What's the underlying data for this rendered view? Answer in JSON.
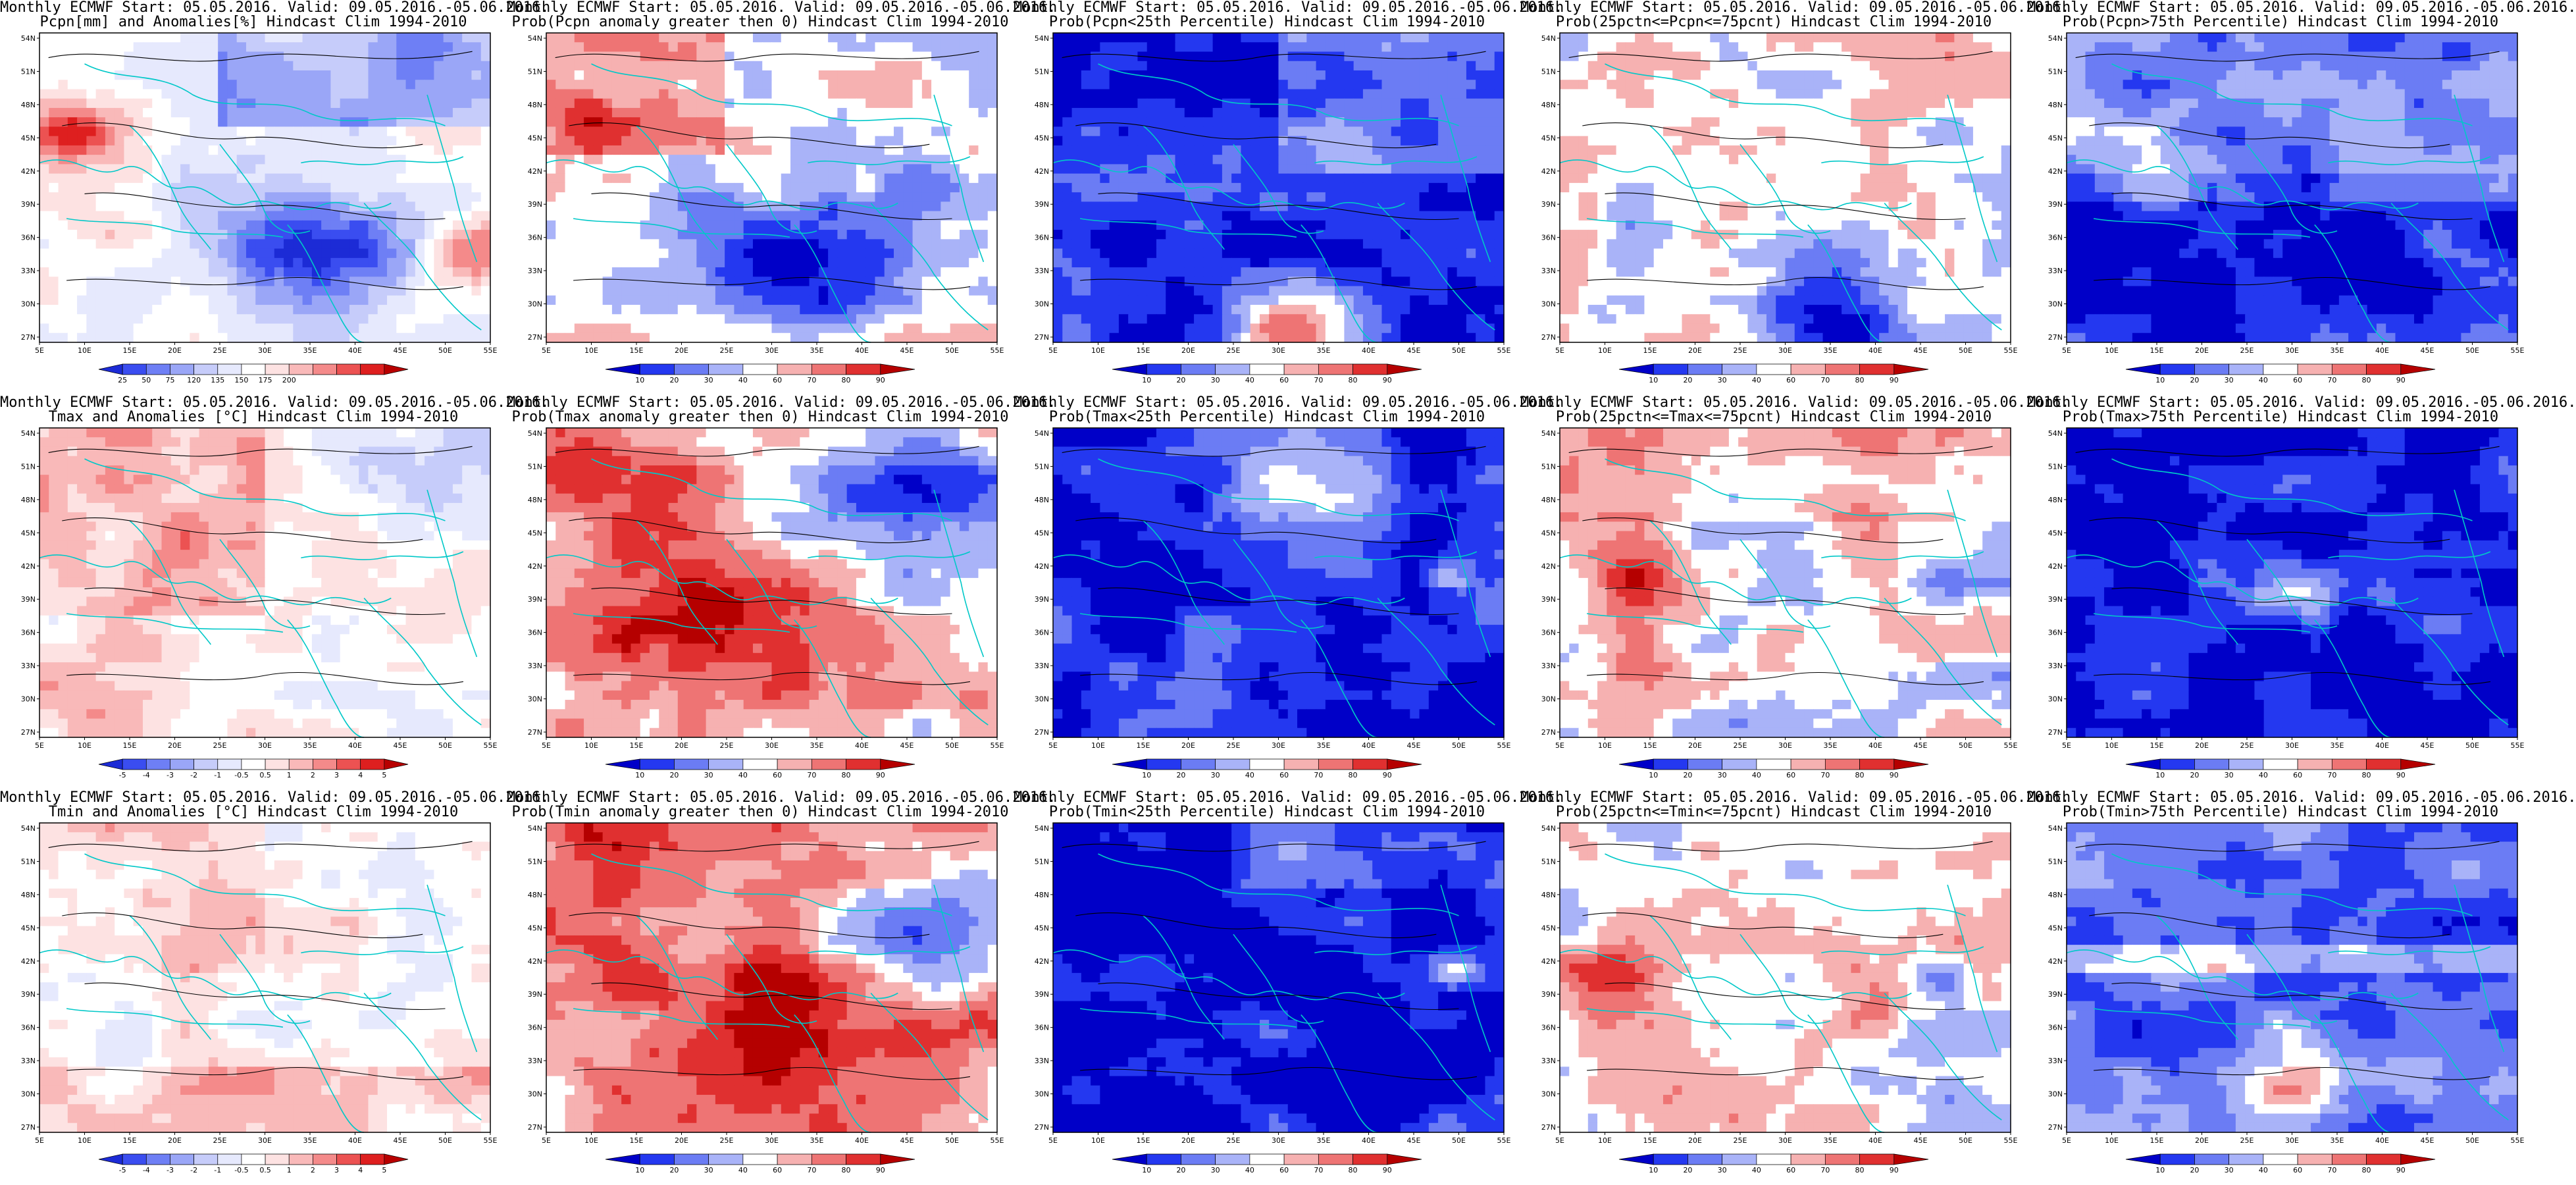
{
  "lon_ticks": [
    "5E",
    "10E",
    "15E",
    "20E",
    "25E",
    "30E",
    "35E",
    "40E",
    "45E",
    "50E",
    "55E"
  ],
  "lat_ticks": [
    "54N",
    "51N",
    "48N",
    "45N",
    "42N",
    "39N",
    "36N",
    "33N",
    "30N",
    "27N"
  ],
  "colors": {
    "anom": [
      "#1c2bd6",
      "#3a4df0",
      "#6e7ff5",
      "#9aa6f7",
      "#c6ccfa",
      "#e6e9fd",
      "#ffffff",
      "#fde2e2",
      "#f9b9b9",
      "#f48a8a",
      "#ec5252",
      "#de1f1f",
      "#b80000"
    ],
    "prob": [
      "#0000c8",
      "#2438f0",
      "#6b7cf4",
      "#a9b3f8",
      "#ffffff",
      "#f6b1b1",
      "#ee7474",
      "#e03030",
      "#b50000"
    ],
    "contour": "#000000",
    "border": "#00c8c8"
  },
  "panels": [
    {
      "line1": "Monthly ECMWF Start: 05.05.2016. Valid: 09.05.2016.-05.06.2016.",
      "line2": "Pcpn[mm] and Anomalies[%] Hindcast Clim 1994-2010",
      "pattern": "pcpn_anom",
      "colorbar": "anom",
      "labels": [
        "25",
        "50",
        "75",
        "120",
        "135",
        "150",
        "175",
        "200"
      ]
    },
    {
      "line1": "Monthly ECMWF Start: 05.05.2016. Valid: 09.05.2016.-05.06.2016.",
      "line2": "Prob(Pcpn anomaly greater then 0) Hindcast Clim 1994-2010",
      "pattern": "pcpn_pos",
      "colorbar": "prob",
      "labels": [
        "10",
        "20",
        "30",
        "40",
        "60",
        "70",
        "80",
        "90"
      ]
    },
    {
      "line1": "Monthly ECMWF Start: 05.05.2016. Valid: 09.05.2016.-05.06.2016.",
      "line2": "Prob(Pcpn<25th Percentile) Hindcast Clim 1994-2010",
      "pattern": "pcpn_low",
      "colorbar": "prob",
      "labels": [
        "10",
        "20",
        "30",
        "40",
        "60",
        "70",
        "80",
        "90"
      ]
    },
    {
      "line1": "Monthly ECMWF Start: 05.05.2016. Valid: 09.05.2016.-05.06.2016.",
      "line2": "Prob(25pctn<=Pcpn<=75pcnt) Hindcast Clim 1994-2010",
      "pattern": "pcpn_mid",
      "colorbar": "prob",
      "labels": [
        "10",
        "20",
        "30",
        "40",
        "60",
        "70",
        "80",
        "90"
      ]
    },
    {
      "line1": "Monthly ECMWF Start: 05.05.2016. Valid: 09.05.2016.-05.06.2016.",
      "line2": "Prob(Pcpn>75th Percentile) Hindcast Clim 1994-2010",
      "pattern": "pcpn_high",
      "colorbar": "prob",
      "labels": [
        "10",
        "20",
        "30",
        "40",
        "60",
        "70",
        "80",
        "90"
      ]
    },
    {
      "line1": "Monthly ECMWF Start: 05.05.2016. Valid: 09.05.2016.-05.06.2016.",
      "line2": "Tmax and Anomalies [°C] Hindcast Clim 1994-2010",
      "pattern": "t_anom",
      "colorbar": "anom",
      "labels": [
        "-5",
        "-4",
        "-3",
        "-2",
        "-1",
        "-0.5",
        "0.5",
        "1",
        "2",
        "3",
        "4",
        "5"
      ]
    },
    {
      "line1": "Monthly ECMWF Start: 05.05.2016. Valid: 09.05.2016.-05.06.2016.",
      "line2": "Prob(Tmax anomaly greater then 0) Hindcast Clim 1994-2010",
      "pattern": "t_pos",
      "colorbar": "prob",
      "labels": [
        "10",
        "20",
        "30",
        "40",
        "60",
        "70",
        "80",
        "90"
      ]
    },
    {
      "line1": "Monthly ECMWF Start: 05.05.2016. Valid: 09.05.2016.-05.06.2016.",
      "line2": "Prob(Tmax<25th Percentile) Hindcast Clim 1994-2010",
      "pattern": "t_low",
      "colorbar": "prob",
      "labels": [
        "10",
        "20",
        "30",
        "40",
        "60",
        "70",
        "80",
        "90"
      ]
    },
    {
      "line1": "Monthly ECMWF Start: 05.05.2016. Valid: 09.05.2016.-05.06.2016.",
      "line2": "Prob(25pctn<=Tmax<=75pcnt) Hindcast Clim 1994-2010",
      "pattern": "t_mid",
      "colorbar": "prob",
      "labels": [
        "10",
        "20",
        "30",
        "40",
        "60",
        "70",
        "80",
        "90"
      ]
    },
    {
      "line1": "Monthly ECMWF Start: 05.05.2016. Valid: 09.05.2016.-05.06.2016.",
      "line2": "Prob(Tmax>75th Percentile) Hindcast Clim 1994-2010",
      "pattern": "t_high",
      "colorbar": "prob",
      "labels": [
        "10",
        "20",
        "30",
        "40",
        "60",
        "70",
        "80",
        "90"
      ]
    },
    {
      "line1": "Monthly ECMWF Start: 05.05.2016. Valid: 09.05.2016.-05.06.2016.",
      "line2": "Tmin and Anomalies [°C] Hindcast Clim 1994-2010",
      "pattern": "tmin_anom",
      "colorbar": "anom",
      "labels": [
        "-5",
        "-4",
        "-3",
        "-2",
        "-1",
        "-0.5",
        "0.5",
        "1",
        "2",
        "3",
        "4",
        "5"
      ]
    },
    {
      "line1": "Monthly ECMWF Start: 05.05.2016. Valid: 09.05.2016.-05.06.2016.",
      "line2": "Prob(Tmin anomaly greater then 0) Hindcast Clim 1994-2010",
      "pattern": "tmin_pos",
      "colorbar": "prob",
      "labels": [
        "10",
        "20",
        "30",
        "40",
        "60",
        "70",
        "80",
        "90"
      ]
    },
    {
      "line1": "Monthly ECMWF Start: 05.05.2016. Valid: 09.05.2016.-05.06.2016.",
      "line2": "Prob(Tmin<25th Percentile) Hindcast Clim 1994-2010",
      "pattern": "tmin_low",
      "colorbar": "prob",
      "labels": [
        "10",
        "20",
        "30",
        "40",
        "60",
        "70",
        "80",
        "90"
      ]
    },
    {
      "line1": "Monthly ECMWF Start: 05.05.2016. Valid: 09.05.2016.-05.06.2016.",
      "line2": "Prob(25pctn<=Tmin<=75pcnt) Hindcast Clim 1994-2010",
      "pattern": "tmin_mid",
      "colorbar": "prob",
      "labels": [
        "10",
        "20",
        "30",
        "40",
        "60",
        "70",
        "80",
        "90"
      ]
    },
    {
      "line1": "Monthly ECMWF Start: 05.05.2016. Valid: 09.05.2016.-05.06.2016.",
      "line2": "Prob(Tmin>75th Percentile) Hindcast Clim 1994-2010",
      "pattern": "tmin_high",
      "colorbar": "prob",
      "labels": [
        "10",
        "20",
        "30",
        "40",
        "60",
        "70",
        "80",
        "90"
      ]
    }
  ]
}
